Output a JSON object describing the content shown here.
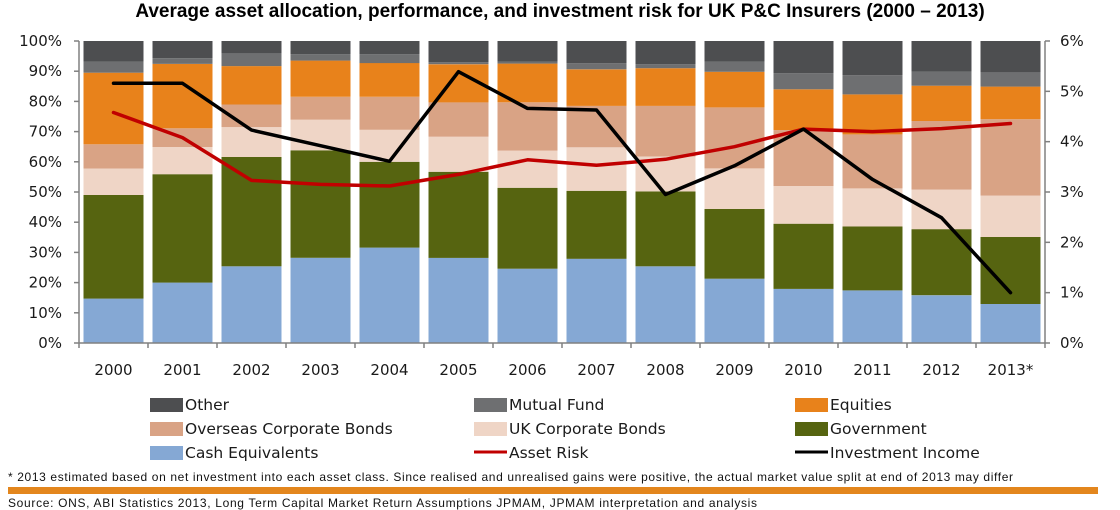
{
  "chart_data": {
    "type": "bar",
    "subtype": "stacked-100-with-secondary-lines",
    "title": "Average asset allocation, performance, and investment risk for UK P&C Insurers (2000 – 2013)",
    "xlabel": "",
    "ylabel": "",
    "y_left": {
      "min": 0,
      "max": 100,
      "step": 10,
      "suffix": "%",
      "ticks": [
        "0%",
        "10%",
        "20%",
        "30%",
        "40%",
        "50%",
        "60%",
        "70%",
        "80%",
        "90%",
        "100%"
      ]
    },
    "y_right": {
      "min": 0,
      "max": 6,
      "step": 1,
      "suffix": "%",
      "ticks": [
        "0%",
        "1%",
        "2%",
        "3%",
        "4%",
        "5%",
        "6%"
      ]
    },
    "categories": [
      "2000",
      "2001",
      "2002",
      "2003",
      "2004",
      "2005",
      "2006",
      "2007",
      "2008",
      "2009",
      "2010",
      "2011",
      "2012",
      "2013*"
    ],
    "series": [
      {
        "name": "Cash Equivalents",
        "kind": "bar",
        "axis": "left",
        "color": "#85a8d4",
        "values": [
          14.7,
          20.0,
          25.4,
          28.2,
          31.6,
          28.2,
          24.6,
          27.9,
          25.4,
          21.3,
          17.9,
          17.4,
          15.8,
          12.9
        ]
      },
      {
        "name": "Government",
        "kind": "bar",
        "axis": "left",
        "color": "#566410",
        "values": [
          34.3,
          35.9,
          36.2,
          35.6,
          28.4,
          28.5,
          26.8,
          22.5,
          24.8,
          23.1,
          21.6,
          21.2,
          21.9,
          22.2
        ]
      },
      {
        "name": "UK Corporate Bonds",
        "kind": "bar",
        "axis": "left",
        "color": "#efd5c6",
        "values": [
          8.8,
          9.0,
          9.9,
          10.2,
          10.6,
          11.6,
          12.3,
          14.4,
          11.5,
          13.4,
          12.5,
          12.6,
          13.1,
          13.7
        ]
      },
      {
        "name": "Overseas Corporate Bonds",
        "kind": "bar",
        "axis": "left",
        "color": "#d9a385",
        "values": [
          8.0,
          6.2,
          7.5,
          7.5,
          10.9,
          11.4,
          16.0,
          13.7,
          16.8,
          20.2,
          18.5,
          17.9,
          22.7,
          25.3
        ]
      },
      {
        "name": "Equities",
        "kind": "bar",
        "axis": "left",
        "color": "#e8821b",
        "values": [
          23.7,
          21.3,
          12.7,
          12.0,
          11.2,
          12.6,
          12.8,
          12.1,
          12.5,
          11.8,
          13.5,
          13.2,
          11.7,
          10.8
        ]
      },
      {
        "name": "Mutual Fund",
        "kind": "bar",
        "axis": "left",
        "color": "#6e6f71",
        "values": [
          3.6,
          1.9,
          4.2,
          2.1,
          2.9,
          0.7,
          0.6,
          2.0,
          1.3,
          3.3,
          5.3,
          6.4,
          4.6,
          4.7
        ]
      },
      {
        "name": "Other",
        "kind": "bar",
        "axis": "left",
        "color": "#4d4e50",
        "values": [
          6.9,
          5.7,
          4.1,
          4.4,
          4.4,
          7.0,
          6.9,
          7.4,
          7.7,
          6.9,
          10.7,
          11.3,
          10.2,
          10.4
        ]
      },
      {
        "name": "Asset Risk",
        "kind": "line",
        "axis": "right",
        "color": "#c00000",
        "values": [
          4.58,
          4.08,
          3.23,
          3.15,
          3.12,
          3.35,
          3.64,
          3.53,
          3.65,
          3.9,
          4.25,
          4.2,
          4.26,
          4.36
        ]
      },
      {
        "name": "Investment Income",
        "kind": "line",
        "axis": "right",
        "color": "#000000",
        "values": [
          5.16,
          5.16,
          4.23,
          3.92,
          3.61,
          5.39,
          4.66,
          4.63,
          2.95,
          3.52,
          4.25,
          3.25,
          2.49,
          1.0
        ]
      }
    ],
    "legend": {
      "placement": "bottom",
      "entries": [
        {
          "name": "Other",
          "kind": "box",
          "color": "#4d4e50"
        },
        {
          "name": "Mutual Fund",
          "kind": "box",
          "color": "#6e6f71"
        },
        {
          "name": "Equities",
          "kind": "box",
          "color": "#e8821b"
        },
        {
          "name": "Overseas Corporate Bonds",
          "kind": "box",
          "color": "#d9a385"
        },
        {
          "name": "UK Corporate Bonds",
          "kind": "box",
          "color": "#efd5c6"
        },
        {
          "name": "Government",
          "kind": "box",
          "color": "#566410"
        },
        {
          "name": "Cash Equivalents",
          "kind": "box",
          "color": "#85a8d4"
        },
        {
          "name": "Asset Risk",
          "kind": "line",
          "color": "#c00000"
        },
        {
          "name": "Investment Income",
          "kind": "line",
          "color": "#000000"
        }
      ]
    },
    "grid": false
  },
  "footnote": "* 2013 estimated based on net investment into each asset class. Since realised and unrealised gains were positive, the actual market value split at end of 2013 may differ",
  "source": "Source: ONS, ABI Statistics 2013, Long Term Capital Market Return Assumptions JPMAM, JPMAM interpretation and analysis",
  "colors": {
    "rule": "#e3861d",
    "axis": "#808080"
  }
}
